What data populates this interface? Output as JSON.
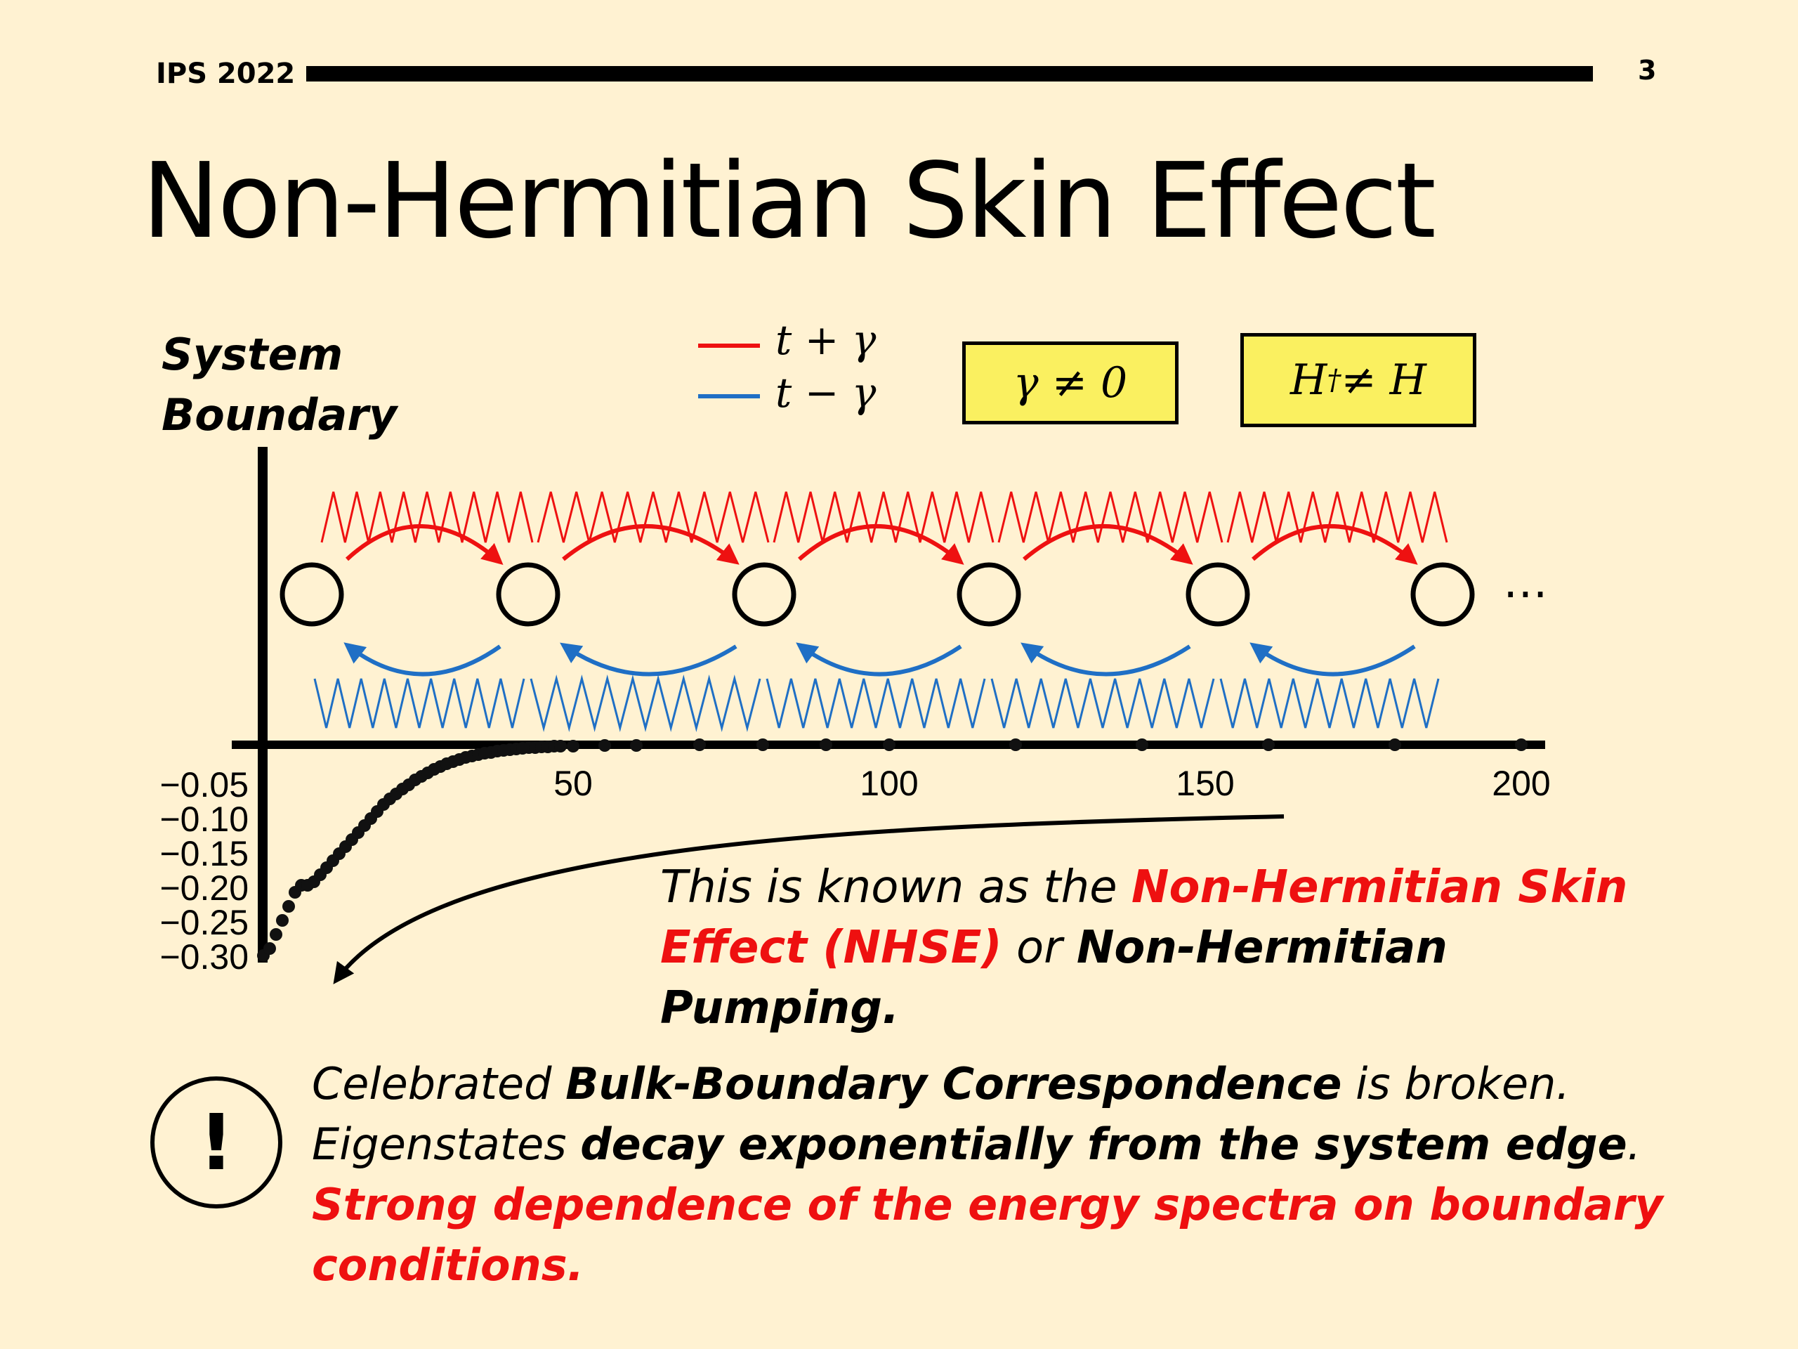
{
  "header": {
    "label": "IPS 2022",
    "page_number": "3"
  },
  "title": "Non-Hermitian Skin Effect",
  "diagram": {
    "system_boundary_line1": "System",
    "system_boundary_line2": "Boundary",
    "legend": [
      {
        "label": "t + γ",
        "color": "#ee1111"
      },
      {
        "label": "t − γ",
        "color": "#1f6fc5"
      }
    ],
    "box_gamma": "γ ≠ 0",
    "box_hermitian_base": "H",
    "box_hermitian_sup": "†",
    "box_hermitian_rest": " ≠ H",
    "ellipsis": "⋯",
    "site_count_shown": 6
  },
  "chart_data": {
    "type": "scatter",
    "x_ticks": [
      "50",
      "100",
      "150",
      "200"
    ],
    "y_ticks": [
      "−0.05",
      "−0.10",
      "−0.15",
      "−0.20",
      "−0.25",
      "−0.30"
    ],
    "xlim": [
      0,
      205
    ],
    "ylim": [
      -0.31,
      0
    ],
    "x": [
      1,
      2,
      3,
      4,
      5,
      6,
      7,
      8,
      9,
      10,
      11,
      12,
      13,
      14,
      15,
      16,
      17,
      18,
      19,
      20,
      21,
      22,
      23,
      24,
      25,
      26,
      27,
      28,
      29,
      30,
      31,
      32,
      33,
      34,
      35,
      36,
      37,
      38,
      39,
      40,
      41,
      42,
      43,
      44,
      45,
      46,
      47,
      48,
      50,
      55,
      60,
      70,
      80,
      90,
      100,
      120,
      140,
      160,
      180,
      200
    ],
    "y": [
      -0.3,
      -0.29,
      -0.27,
      -0.25,
      -0.23,
      -0.21,
      -0.2,
      -0.2,
      -0.195,
      -0.185,
      -0.175,
      -0.165,
      -0.155,
      -0.145,
      -0.135,
      -0.125,
      -0.115,
      -0.105,
      -0.095,
      -0.085,
      -0.077,
      -0.07,
      -0.063,
      -0.057,
      -0.05,
      -0.045,
      -0.04,
      -0.035,
      -0.031,
      -0.027,
      -0.024,
      -0.021,
      -0.018,
      -0.016,
      -0.014,
      -0.012,
      -0.011,
      -0.009,
      -0.008,
      -0.007,
      -0.006,
      -0.005,
      -0.004,
      -0.004,
      -0.003,
      -0.003,
      -0.002,
      -0.002,
      -0.002,
      -0.001,
      -0.001,
      0,
      0,
      0,
      0,
      0,
      0,
      0,
      0,
      0
    ]
  },
  "description": {
    "part1": "This is known as the ",
    "red": "Non-Hermitian Skin Effect (NHSE)",
    "part2": " or ",
    "bold": "Non-Hermitian Pumping."
  },
  "warning": {
    "icon_text": "!",
    "t1": "Celebrated ",
    "b1": "Bulk-Boundary Correspondence",
    "t2": " is broken.",
    "t3": "Eigenstates ",
    "b2": "decay exponentially from the system edge",
    "t4": ". ",
    "red": "Strong dependence of the energy spectra on boundary conditions."
  },
  "colors": {
    "background": "#fff2d2",
    "hop_right": "#ee1111",
    "hop_left": "#1f6fc5",
    "box_fill": "#faf060"
  }
}
